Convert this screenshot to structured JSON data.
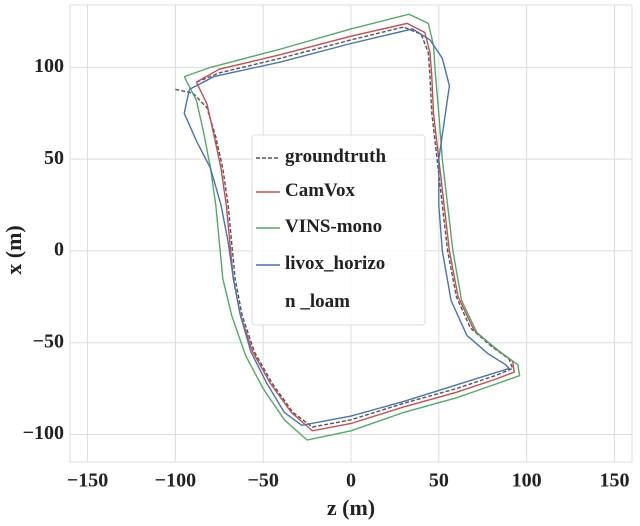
{
  "chart_data": {
    "type": "line",
    "xlabel": "z (m)",
    "ylabel": "x (m)",
    "xlim": [
      -160,
      160
    ],
    "ylim": [
      -115,
      134
    ],
    "xticks": [
      {
        "value": -150,
        "label": "−150"
      },
      {
        "value": -100,
        "label": "−100"
      },
      {
        "value": -50,
        "label": "−50"
      },
      0,
      50,
      100,
      150
    ],
    "yticks": [
      {
        "value": -100,
        "label": "−100"
      },
      {
        "value": -50,
        "label": "−50"
      },
      0,
      50,
      100
    ],
    "grid": true,
    "legend": "center",
    "series": [
      {
        "name": "groundtruth",
        "color": "#555555",
        "linestyle": "dashed",
        "x": [
          -100,
          -90,
          -82,
          -77,
          -73,
          -70,
          -68,
          -66,
          -62,
          -55,
          -45,
          -33,
          -22,
          0,
          30,
          60,
          82,
          92,
          90,
          80,
          68,
          60,
          55,
          52,
          49,
          46,
          45,
          44,
          40,
          30,
          0,
          -40,
          -75,
          -88
        ],
        "y": [
          88,
          86,
          78,
          62,
          45,
          25,
          5,
          -15,
          -35,
          -55,
          -72,
          -88,
          -96,
          -92,
          -83,
          -75,
          -68,
          -64,
          -59,
          -52,
          -42,
          -25,
          0,
          25,
          50,
          75,
          95,
          108,
          118,
          122,
          115,
          105,
          97,
          92
        ]
      },
      {
        "name": "CamVox",
        "color": "#c44e52",
        "linestyle": "solid",
        "x": [
          -88,
          -82,
          -78,
          -74,
          -71,
          -69,
          -67,
          -63,
          -56,
          -46,
          -34,
          -22,
          0,
          30,
          60,
          82,
          93,
          92,
          82,
          70,
          61,
          56,
          53,
          50,
          47,
          46,
          45,
          42,
          32,
          0,
          -40,
          -75,
          -88
        ],
        "y": [
          92,
          80,
          63,
          45,
          25,
          5,
          -15,
          -35,
          -55,
          -72,
          -88,
          -98,
          -94,
          -85,
          -77,
          -70,
          -66,
          -60,
          -53,
          -43,
          -25,
          0,
          25,
          50,
          75,
          95,
          108,
          119,
          124,
          117,
          107,
          99,
          92
        ]
      },
      {
        "name": "VINS-mono",
        "color": "#55a868",
        "linestyle": "solid",
        "x": [
          -95,
          -88,
          -84,
          -80,
          -77,
          -75,
          -73,
          -68,
          -60,
          -50,
          -38,
          -25,
          0,
          30,
          60,
          84,
          96,
          95,
          85,
          72,
          63,
          58,
          55,
          52,
          50,
          48,
          47,
          44,
          33,
          0,
          -40,
          -80,
          -95
        ],
        "y": [
          95,
          82,
          65,
          45,
          25,
          5,
          -15,
          -35,
          -57,
          -75,
          -92,
          -103,
          -98,
          -88,
          -80,
          -72,
          -68,
          -62,
          -55,
          -45,
          -27,
          0,
          25,
          50,
          75,
          97,
          112,
          124,
          129,
          121,
          110,
          100,
          95
        ]
      },
      {
        "name": "livox_horizo\nn _loam",
        "color": "#4c72b0",
        "linestyle": "solid",
        "x": [
          -92,
          -95,
          -88,
          -80,
          -74,
          -70,
          -67,
          -63,
          -57,
          -48,
          -38,
          -28,
          0,
          30,
          60,
          80,
          90,
          88,
          78,
          66,
          57,
          52,
          50,
          50,
          53,
          56,
          52,
          45,
          35,
          0,
          -40,
          -78,
          -92
        ],
        "y": [
          88,
          75,
          60,
          45,
          25,
          5,
          -15,
          -35,
          -55,
          -72,
          -88,
          -95,
          -90,
          -82,
          -73,
          -67,
          -64,
          -62,
          -56,
          -46,
          -27,
          0,
          25,
          50,
          70,
          90,
          105,
          115,
          121,
          113,
          103,
          95,
          88
        ]
      }
    ]
  }
}
